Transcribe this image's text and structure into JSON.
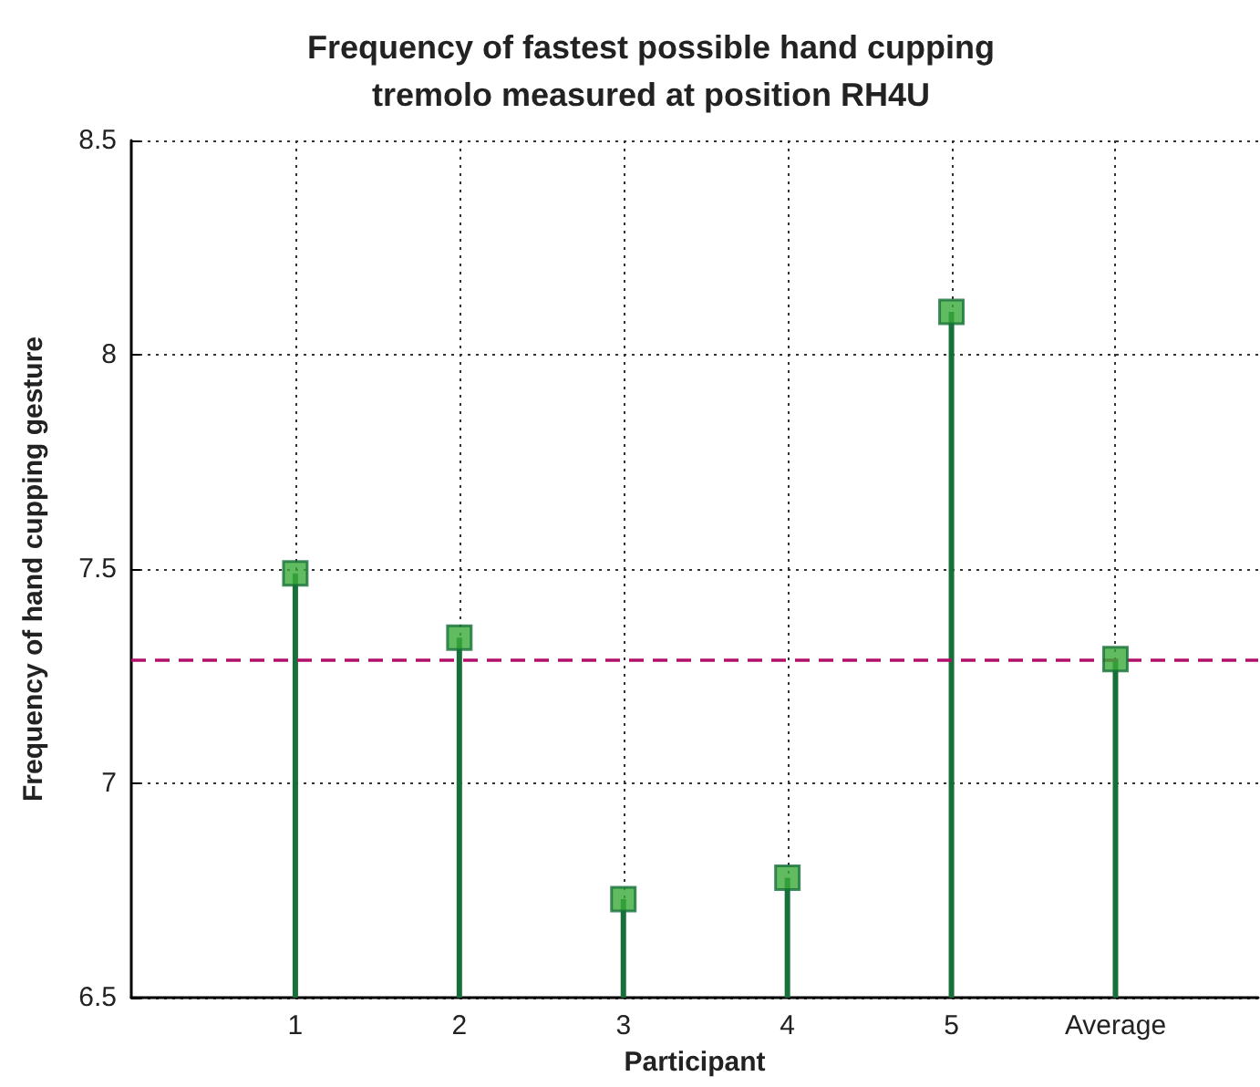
{
  "chart_data": {
    "type": "lollipop",
    "title": "Frequency of fastest possible hand cupping\ntremolo measured at position RH4U",
    "xlabel": "Participant",
    "ylabel": "Frequency of hand cupping gesture",
    "categories": [
      "1",
      "2",
      "3",
      "4",
      "5",
      "Average"
    ],
    "values": [
      7.49,
      7.34,
      6.73,
      6.78,
      8.1,
      7.29
    ],
    "color": "#3aab3a",
    "ylim": [
      6.5,
      8.5
    ],
    "yticks": [
      6.5,
      7,
      7.5,
      8,
      8.5
    ],
    "grid": true,
    "marker": "square",
    "ref_lines": [
      {
        "axis": "y",
        "value": 7.29,
        "color": "#b0106a",
        "line_style": "dashed"
      }
    ]
  }
}
